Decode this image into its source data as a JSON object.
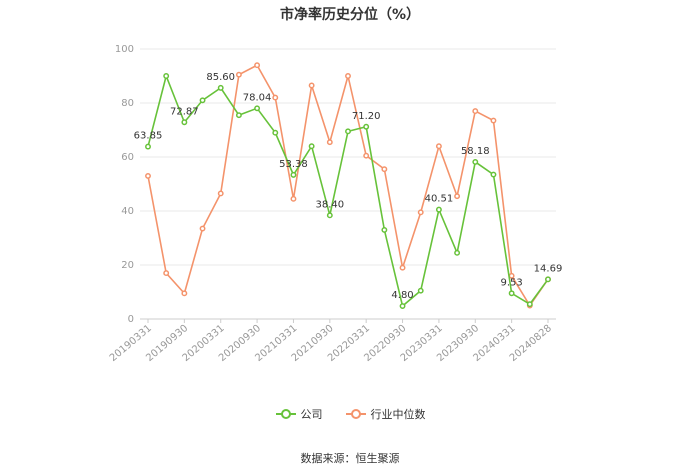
{
  "title": "市净率历史分位（%）",
  "source": "数据来源：恒生聚源",
  "colors": {
    "company": "#67c23a",
    "industry": "#f4936b",
    "grid": "#e8e8e8",
    "axis": "#cccccc"
  },
  "legend": [
    {
      "name": "公司",
      "color": "#67c23a"
    },
    {
      "name": "行业中位数",
      "color": "#f4936b"
    }
  ],
  "chart_data": {
    "type": "line",
    "title": "市净率历史分位（%）",
    "ylim": [
      0,
      100
    ],
    "yticks": [
      0,
      20,
      40,
      60,
      80,
      100
    ],
    "grid": true,
    "legend_position": "bottom",
    "xtick_labels": [
      "20190331",
      "20190930",
      "20200331",
      "20200930",
      "20210331",
      "20210930",
      "20220331",
      "20220930",
      "20230331",
      "20230930",
      "20240331",
      "20240828"
    ],
    "x": [
      "20190331",
      "20190630",
      "20190930",
      "20191231",
      "20200331",
      "20200630",
      "20200930",
      "20201231",
      "20210331",
      "20210630",
      "20210930",
      "20211231",
      "20220331",
      "20220630",
      "20220930",
      "20221231",
      "20230331",
      "20230630",
      "20230930",
      "20231231",
      "20240331",
      "20240630",
      "20240828"
    ],
    "series": [
      {
        "name": "公司",
        "color": "#67c23a",
        "values": [
          63.85,
          90.0,
          72.87,
          81.0,
          85.6,
          75.5,
          78.04,
          69.0,
          53.38,
          64.0,
          38.4,
          69.5,
          71.2,
          33.0,
          4.8,
          10.5,
          40.51,
          24.5,
          58.18,
          53.5,
          9.53,
          5.5,
          14.69
        ]
      },
      {
        "name": "行业中位数",
        "color": "#f4936b",
        "values": [
          53.0,
          17.0,
          9.5,
          33.5,
          46.5,
          90.5,
          94.0,
          82.0,
          44.5,
          86.5,
          65.5,
          90.0,
          60.5,
          55.5,
          19.0,
          39.5,
          64.0,
          45.5,
          77.0,
          73.5,
          16.0,
          5.0,
          14.69
        ]
      }
    ],
    "data_labels": [
      {
        "index": 0,
        "text": "63.85"
      },
      {
        "index": 2,
        "text": "72.87"
      },
      {
        "index": 4,
        "text": "85.60"
      },
      {
        "index": 6,
        "text": "78.04"
      },
      {
        "index": 8,
        "text": "53.38"
      },
      {
        "index": 10,
        "text": "38.40"
      },
      {
        "index": 12,
        "text": "71.20"
      },
      {
        "index": 14,
        "text": "4.80"
      },
      {
        "index": 16,
        "text": "40.51"
      },
      {
        "index": 18,
        "text": "58.18"
      },
      {
        "index": 20,
        "text": "9.53"
      },
      {
        "index": 22,
        "text": "14.69"
      }
    ]
  }
}
